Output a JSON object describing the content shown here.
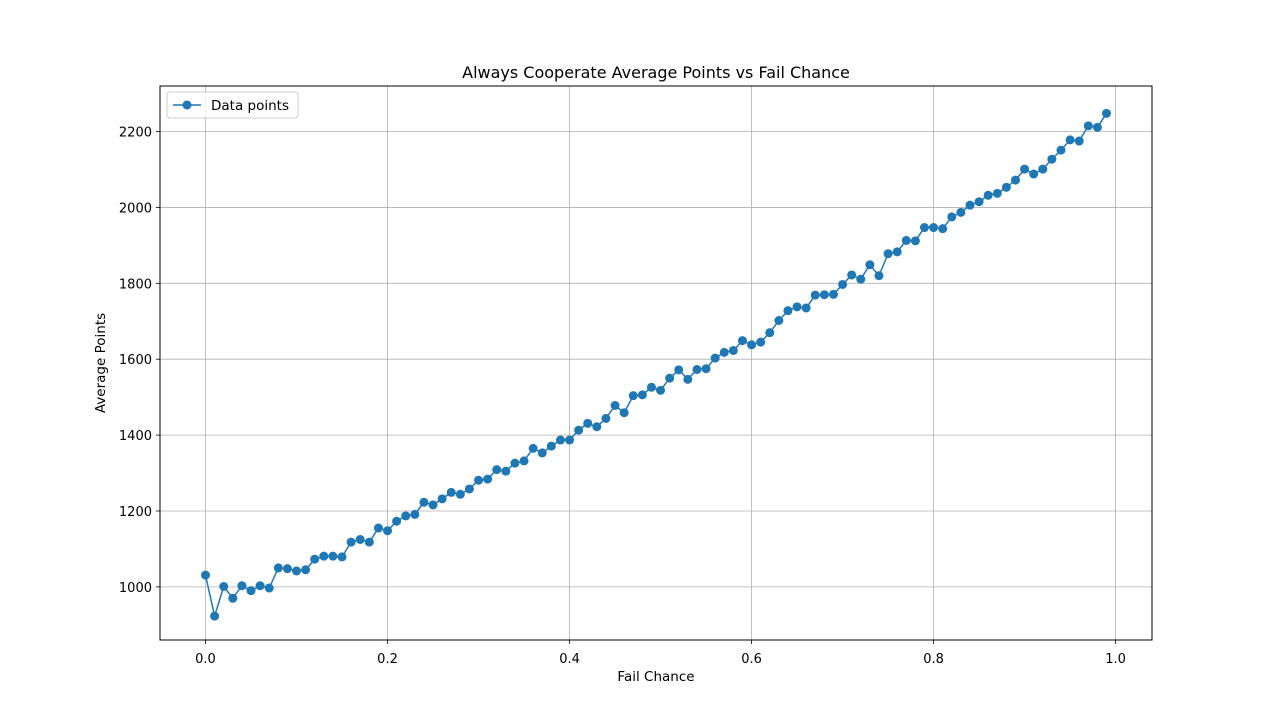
{
  "chart_data": {
    "type": "line",
    "title": "Always Cooperate Average Points vs Fail Chance",
    "xlabel": "Fail Chance",
    "ylabel": "Average Points",
    "xlim": [
      -0.05,
      1.04
    ],
    "ylim": [
      860,
      2320
    ],
    "xticks": [
      0.0,
      0.2,
      0.4,
      0.6,
      0.8,
      1.0
    ],
    "xtick_labels": [
      "0.0",
      "0.2",
      "0.4",
      "0.6",
      "0.8",
      "1.0"
    ],
    "yticks": [
      1000,
      1200,
      1400,
      1600,
      1800,
      2000,
      2200
    ],
    "ytick_labels": [
      "1000",
      "1200",
      "1400",
      "1600",
      "1800",
      "2000",
      "2200"
    ],
    "grid": true,
    "legend_position": "top-left",
    "colors": {
      "series": "#1f77b4",
      "grid": "#b0b0b0",
      "axes": "#000000"
    },
    "series": [
      {
        "name": "Data points",
        "marker": "circle",
        "x": [
          0.0,
          0.01,
          0.02,
          0.03,
          0.04,
          0.05,
          0.06,
          0.07,
          0.08,
          0.09,
          0.1,
          0.11,
          0.12,
          0.13,
          0.14,
          0.15,
          0.16,
          0.17,
          0.18,
          0.19,
          0.2,
          0.21,
          0.22,
          0.23,
          0.24,
          0.25,
          0.26,
          0.27,
          0.28,
          0.29,
          0.3,
          0.31,
          0.32,
          0.33,
          0.34,
          0.35,
          0.36,
          0.37,
          0.38,
          0.39,
          0.4,
          0.41,
          0.42,
          0.43,
          0.44,
          0.45,
          0.46,
          0.47,
          0.48,
          0.49,
          0.5,
          0.51,
          0.52,
          0.53,
          0.54,
          0.55,
          0.56,
          0.57,
          0.58,
          0.59,
          0.6,
          0.61,
          0.62,
          0.63,
          0.64,
          0.65,
          0.66,
          0.67,
          0.68,
          0.69,
          0.7,
          0.71,
          0.72,
          0.73,
          0.74,
          0.75,
          0.76,
          0.77,
          0.78,
          0.79,
          0.8,
          0.81,
          0.82,
          0.83,
          0.84,
          0.85,
          0.86,
          0.87,
          0.88,
          0.89,
          0.9,
          0.91,
          0.92,
          0.93,
          0.94,
          0.95,
          0.96,
          0.97,
          0.98,
          0.99
        ],
        "values": [
          1031,
          923,
          1001,
          970,
          1003,
          990,
          1003,
          997,
          1050,
          1048,
          1042,
          1045,
          1073,
          1081,
          1081,
          1079,
          1118,
          1125,
          1118,
          1155,
          1148,
          1173,
          1187,
          1191,
          1223,
          1216,
          1232,
          1249,
          1244,
          1258,
          1281,
          1284,
          1309,
          1305,
          1326,
          1332,
          1365,
          1353,
          1371,
          1387,
          1387,
          1413,
          1431,
          1422,
          1444,
          1478,
          1459,
          1504,
          1506,
          1526,
          1518,
          1550,
          1572,
          1547,
          1573,
          1575,
          1603,
          1618,
          1623,
          1649,
          1638,
          1645,
          1670,
          1702,
          1728,
          1738,
          1735,
          1769,
          1770,
          1771,
          1797,
          1822,
          1811,
          1849,
          1820,
          1878,
          1883,
          1913,
          1912,
          1947,
          1947,
          1944,
          1975,
          1987,
          2006,
          2015,
          2032,
          2037,
          2053,
          2072,
          2101,
          2088,
          2101,
          2127,
          2151,
          2178,
          2175,
          2215,
          2211,
          2248
        ]
      }
    ]
  }
}
